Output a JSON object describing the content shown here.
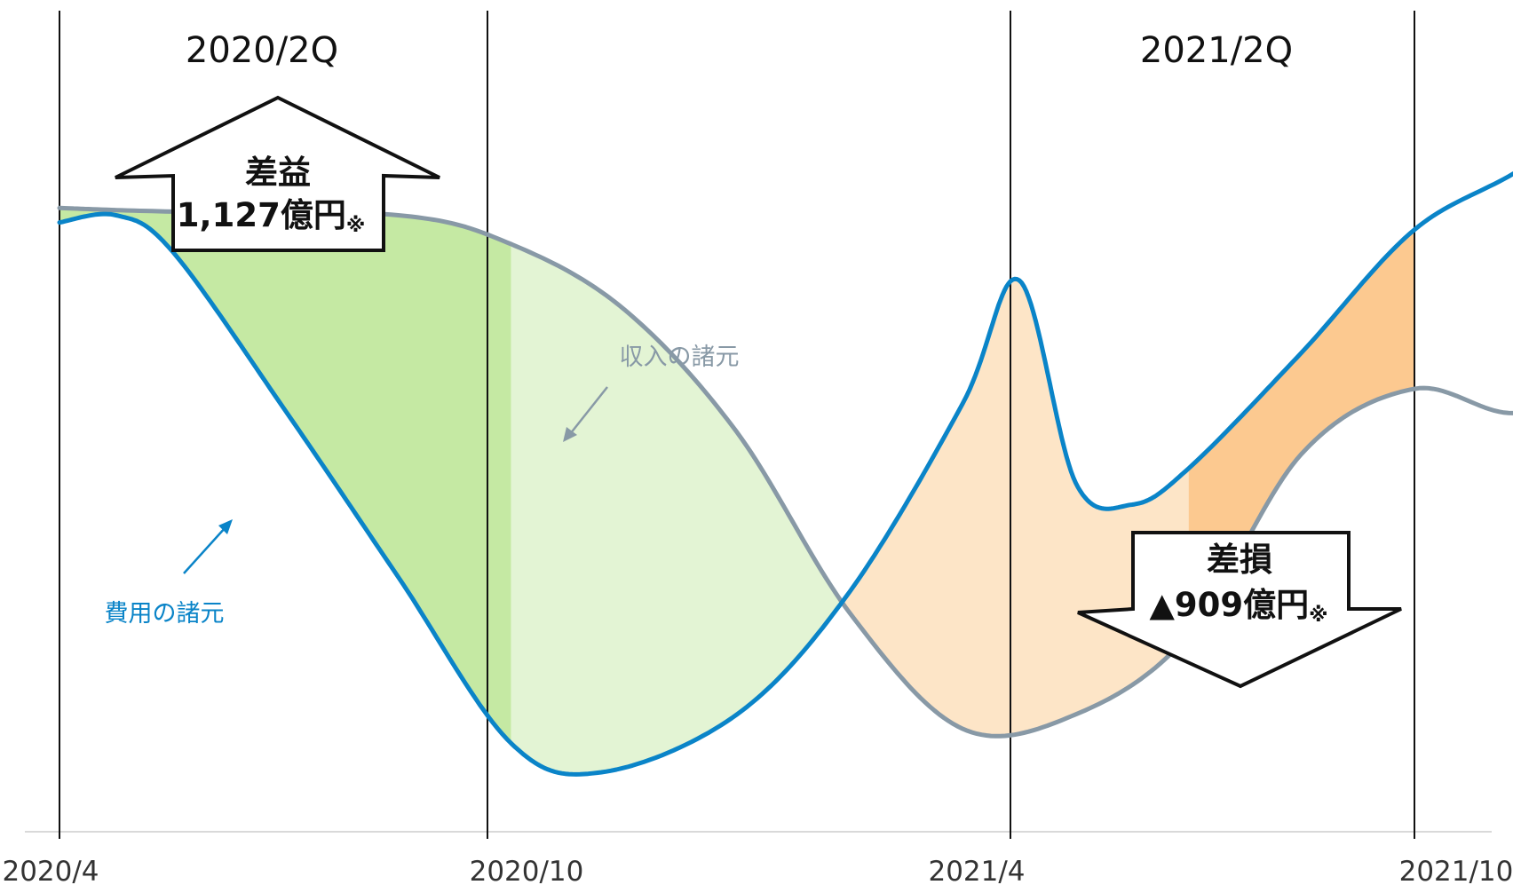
{
  "chart_data": {
    "type": "line",
    "title": "",
    "xlabel": "",
    "ylabel": "",
    "x_ticks": [
      "2020/4",
      "2020/10",
      "2021/4",
      "2021/10"
    ],
    "period_labels": [
      "2020/2Q",
      "2021/2Q"
    ],
    "series": [
      {
        "name": "費用の諸元",
        "color": "#0a84c8",
        "points": [
          [
            0,
            76
          ],
          [
            0.5,
            77
          ],
          [
            1,
            72
          ],
          [
            2,
            50
          ],
          [
            3,
            27
          ],
          [
            4,
            4
          ],
          [
            4.8,
            0
          ],
          [
            6,
            8
          ],
          [
            7,
            25
          ],
          [
            8,
            51
          ],
          [
            8.5,
            68
          ],
          [
            9,
            40
          ],
          [
            9.5,
            37
          ],
          [
            10,
            42
          ],
          [
            11,
            58
          ],
          [
            12,
            75
          ],
          [
            13,
            84
          ],
          [
            14,
            97
          ]
        ]
      },
      {
        "name": "収入の諸元",
        "color": "#8899a6",
        "points": [
          [
            0,
            78
          ],
          [
            1,
            77.5
          ],
          [
            3,
            77
          ],
          [
            4,
            73
          ],
          [
            5,
            64
          ],
          [
            6,
            47
          ],
          [
            7,
            22
          ],
          [
            8,
            6
          ],
          [
            9,
            8
          ],
          [
            10,
            19
          ],
          [
            11,
            44
          ],
          [
            12,
            53
          ],
          [
            13,
            50
          ],
          [
            14,
            64
          ]
        ]
      }
    ],
    "fill_colors": {
      "gain_dark": "#c5e9a3",
      "gain_light": "#e3f4d4",
      "loss_light": "#fde5c7",
      "loss_dark": "#fcc990"
    },
    "annotations": {
      "gain": {
        "title": "差益",
        "value": "1,127億円",
        "note": "※"
      },
      "loss": {
        "title": "差損",
        "value": "▲909億円",
        "note": "※"
      }
    },
    "grid": false
  }
}
